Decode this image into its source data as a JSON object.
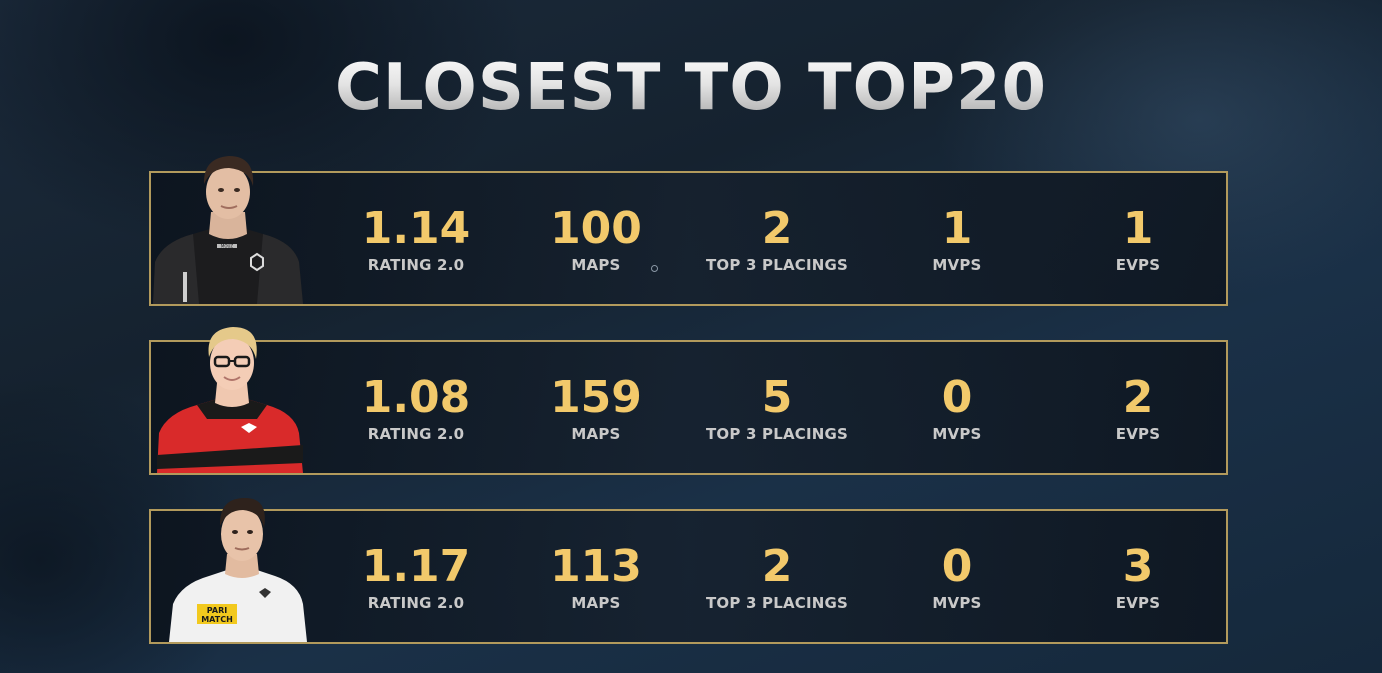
{
  "title": "CLOSEST TO TOP20",
  "colors": {
    "accent_value": "#f2c96b",
    "card_border": "#b29a5c",
    "label": "#c9c9c9"
  },
  "players": [
    {
      "portrait": "player-portrait-black-jersey",
      "stats": [
        {
          "value": "1.14",
          "label": "RATING 2.0"
        },
        {
          "value": "100",
          "label": "MAPS"
        },
        {
          "value": "2",
          "label": "TOP 3 PLACINGS"
        },
        {
          "value": "1",
          "label": "MVPS"
        },
        {
          "value": "1",
          "label": "EVPS"
        }
      ],
      "jersey_texts": [
        "MOUZ"
      ]
    },
    {
      "portrait": "player-portrait-red-jersey",
      "stats": [
        {
          "value": "1.08",
          "label": "RATING 2.0"
        },
        {
          "value": "159",
          "label": "MAPS"
        },
        {
          "value": "5",
          "label": "TOP 3 PLACINGS"
        },
        {
          "value": "0",
          "label": "MVPS"
        },
        {
          "value": "2",
          "label": "EVPS"
        }
      ],
      "jersey_texts": []
    },
    {
      "portrait": "player-portrait-white-jersey",
      "stats": [
        {
          "value": "1.17",
          "label": "RATING 2.0"
        },
        {
          "value": "113",
          "label": "MAPS"
        },
        {
          "value": "2",
          "label": "TOP 3 PLACINGS"
        },
        {
          "value": "0",
          "label": "MVPS"
        },
        {
          "value": "3",
          "label": "EVPS"
        }
      ],
      "jersey_texts": [
        "PARI",
        "MATCH"
      ]
    }
  ]
}
